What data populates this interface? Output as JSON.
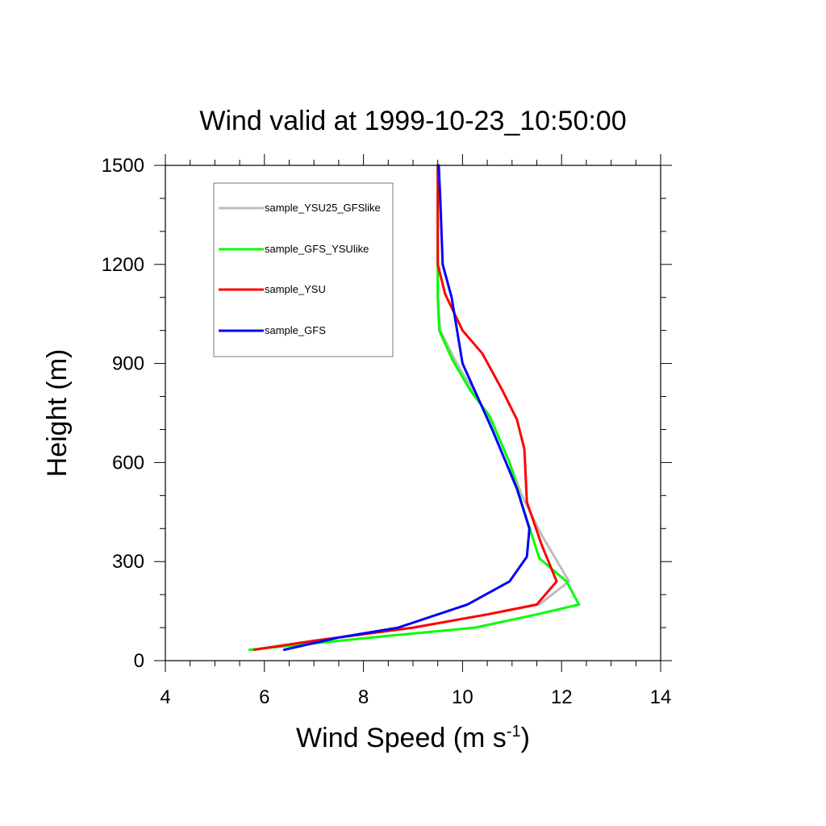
{
  "chart_data": {
    "type": "line",
    "title": "Wind valid at 1999-10-23_10:50:00",
    "xlabel": "Wind Speed (m s",
    "xlabel_superscript": "-1",
    "xlabel_suffix": ")",
    "ylabel": "Height (m)",
    "xlim": [
      4,
      14
    ],
    "ylim": [
      0,
      1500
    ],
    "x_ticks": [
      4,
      6,
      8,
      10,
      12,
      14
    ],
    "x_tick_labels": [
      "4",
      "6",
      "8",
      "10",
      "12",
      "14"
    ],
    "y_ticks": [
      0,
      300,
      600,
      900,
      1200,
      1500
    ],
    "y_tick_labels": [
      "0",
      "300",
      "600",
      "900",
      "1200",
      "1500"
    ],
    "grid": false,
    "legend_position": "top-left",
    "series": [
      {
        "name": "sample_YSU25_GFSlike",
        "color": "#bdbdbd",
        "x": [
          5.75,
          7.0,
          9.0,
          10.5,
          11.55,
          12.15,
          11.6,
          11.2,
          10.95,
          10.6,
          10.2,
          9.85,
          9.55,
          9.5,
          9.5,
          9.5
        ],
        "y": [
          33,
          60,
          100,
          140,
          170,
          240,
          380,
          500,
          600,
          720,
          820,
          910,
          1000,
          1100,
          1250,
          1500
        ]
      },
      {
        "name": "sample_GFS_YSUlike",
        "color": "#00ff00",
        "x": [
          5.7,
          8.5,
          10.25,
          11.5,
          12.35,
          12.1,
          11.55,
          11.25,
          10.95,
          10.55,
          10.15,
          9.8,
          9.53,
          9.5,
          9.5,
          9.5
        ],
        "y": [
          33,
          75,
          100,
          140,
          170,
          240,
          310,
          450,
          600,
          740,
          820,
          910,
          1000,
          1100,
          1250,
          1500
        ]
      },
      {
        "name": "sample_YSU",
        "color": "#ff0000",
        "x": [
          5.8,
          7.0,
          9.0,
          10.5,
          11.5,
          11.9,
          11.6,
          11.3,
          11.25,
          11.1,
          10.8,
          10.4,
          10.0,
          9.65,
          9.5,
          9.5,
          9.5
        ],
        "y": [
          33,
          60,
          100,
          140,
          170,
          240,
          350,
          480,
          640,
          730,
          820,
          930,
          1000,
          1110,
          1200,
          1350,
          1500
        ]
      },
      {
        "name": "sample_GFS",
        "color": "#0000ff",
        "x": [
          6.4,
          7.5,
          8.7,
          10.1,
          10.95,
          11.3,
          11.35,
          11.1,
          10.85,
          10.6,
          10.3,
          10.0,
          9.78,
          9.6,
          9.55,
          9.52
        ],
        "y": [
          33,
          70,
          100,
          170,
          240,
          315,
          400,
          520,
          610,
          700,
          800,
          900,
          1100,
          1200,
          1400,
          1500
        ]
      }
    ]
  }
}
